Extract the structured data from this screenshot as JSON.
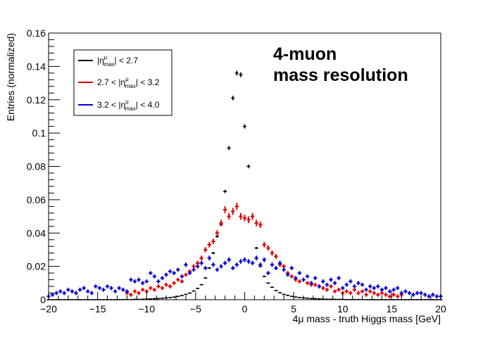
{
  "chart_data": {
    "type": "scatter",
    "xlabel": "4μ mass - truth Higgs mass [GeV]",
    "ylabel": "Entries (normalized)",
    "xlim": [
      -20,
      20
    ],
    "ylim": [
      0,
      0.16
    ],
    "x_ticks": [
      "−20",
      "−15",
      "−10",
      "−5",
      "0",
      "5",
      "10",
      "15",
      "20"
    ],
    "y_ticks": [
      "0",
      "0.02",
      "0.04",
      "0.06",
      "0.08",
      "0.1",
      "0.12",
      "0.14",
      "0.16"
    ],
    "grid": false,
    "legend_position": "top-left",
    "annotation": [
      "4-muon",
      "mass resolution"
    ],
    "series": [
      {
        "name": "|ημmax| < 2.7",
        "legend": {
          "pre": "|η",
          "sup": "μ",
          "sub": "max",
          "post": "| < 2.7"
        },
        "color": "#000000",
        "style": "black-points",
        "x": [
          -20.0,
          -19.6,
          -19.2,
          -18.8,
          -18.4,
          -18.0,
          -17.6,
          -17.2,
          -16.8,
          -16.4,
          -16.0,
          -15.6,
          -15.2,
          -14.8,
          -14.4,
          -14.0,
          -13.6,
          -13.2,
          -12.8,
          -12.4,
          -12.0,
          -11.6,
          -11.2,
          -10.8,
          -10.4,
          -10.0,
          -9.6,
          -9.2,
          -8.8,
          -8.4,
          -8.0,
          -7.6,
          -7.2,
          -6.8,
          -6.4,
          -6.0,
          -5.6,
          -5.2,
          -4.8,
          -4.4,
          -4.0,
          -3.6,
          -3.2,
          -2.8,
          -2.4,
          -2.0,
          -1.6,
          -1.2,
          -0.8,
          -0.4,
          0.0,
          0.4,
          0.8,
          1.2,
          1.6,
          2.0,
          2.4,
          2.8,
          3.2,
          3.6,
          4.0,
          4.4,
          4.8,
          5.2,
          5.6,
          6.0,
          6.4,
          6.8,
          7.2,
          7.6,
          8.0,
          8.4,
          8.8,
          9.2,
          9.6,
          10.0,
          10.4,
          10.8,
          11.2,
          11.6,
          12.0,
          12.4,
          12.8,
          13.2,
          13.6,
          14.0,
          14.4,
          14.8,
          15.2,
          15.6,
          16.0,
          16.4,
          16.8,
          17.2,
          17.6,
          18.0,
          18.4,
          18.8,
          19.2,
          19.6,
          20.0
        ],
        "y": [
          0.0,
          0.0,
          0.0,
          0.0,
          0.0,
          0.0,
          0.0,
          0.0,
          0.0,
          0.0,
          0.0,
          0.0,
          0.0,
          0.0,
          0.0,
          0.0,
          0.0,
          0.0,
          0.0,
          0.0001,
          0.0001,
          0.0001,
          0.0002,
          0.0002,
          0.0003,
          0.0004,
          0.0005,
          0.0006,
          0.0007,
          0.0009,
          0.0011,
          0.0013,
          0.0016,
          0.002,
          0.0025,
          0.0032,
          0.004,
          0.0052,
          0.0068,
          0.009,
          0.013,
          0.019,
          0.028,
          0.038,
          0.045,
          0.065,
          0.091,
          0.121,
          0.136,
          0.135,
          0.104,
          0.08,
          0.05,
          0.031,
          0.02,
          0.014,
          0.01,
          0.0075,
          0.0055,
          0.0042,
          0.0032,
          0.0026,
          0.002,
          0.0016,
          0.0013,
          0.0011,
          0.0009,
          0.0007,
          0.0006,
          0.0005,
          0.0004,
          0.0003,
          0.0003,
          0.0002,
          0.0002,
          0.0002,
          0.0001,
          0.0001,
          0.0001,
          0.0001,
          0.0001,
          0.0,
          0.0,
          0.0,
          0.0,
          0.0,
          0.0,
          0.0,
          0.0,
          0.0,
          0.0,
          0.0,
          0.0,
          0.0,
          0.0,
          0.0,
          0.0,
          0.0,
          0.0,
          0.0,
          0.0
        ]
      },
      {
        "name": "2.7 < |ημmax| < 3.2",
        "legend": {
          "pre": "2.7 < |η",
          "sup": "μ",
          "sub": "max",
          "post": "| < 3.2"
        },
        "color": "#e00000",
        "style": "crosses",
        "x": [
          -12.0,
          -11.6,
          -11.2,
          -10.8,
          -10.4,
          -10.0,
          -9.6,
          -9.2,
          -8.8,
          -8.4,
          -8.0,
          -7.6,
          -7.2,
          -6.8,
          -6.4,
          -6.0,
          -5.6,
          -5.2,
          -4.8,
          -4.4,
          -4.0,
          -3.6,
          -3.2,
          -2.8,
          -2.4,
          -2.0,
          -1.6,
          -1.2,
          -0.8,
          -0.4,
          0.0,
          0.4,
          0.8,
          1.2,
          1.6,
          2.0,
          2.4,
          2.8,
          3.2,
          3.6,
          4.0,
          4.4,
          4.8,
          5.2,
          5.6,
          6.0,
          6.4,
          6.8,
          7.2,
          7.6,
          8.0,
          8.4,
          8.8,
          9.2,
          9.6,
          10.0,
          10.4,
          10.8,
          11.2,
          11.6,
          12.0,
          12.4,
          12.8,
          13.2,
          13.6,
          14.0,
          14.4,
          14.8,
          15.2,
          15.6,
          16.0
        ],
        "y": [
          0.004,
          0.003,
          0.005,
          0.004,
          0.006,
          0.005,
          0.007,
          0.006,
          0.008,
          0.007,
          0.009,
          0.008,
          0.01,
          0.012,
          0.011,
          0.015,
          0.017,
          0.02,
          0.022,
          0.025,
          0.03,
          0.033,
          0.035,
          0.04,
          0.046,
          0.054,
          0.05,
          0.053,
          0.056,
          0.05,
          0.049,
          0.048,
          0.05,
          0.046,
          0.045,
          0.033,
          0.031,
          0.028,
          0.026,
          0.021,
          0.02,
          0.016,
          0.014,
          0.012,
          0.011,
          0.012,
          0.01,
          0.009,
          0.009,
          0.008,
          0.007,
          0.006,
          0.008,
          0.005,
          0.006,
          0.004,
          0.005,
          0.004,
          0.006,
          0.004,
          0.005,
          0.003,
          0.005,
          0.004,
          0.003,
          0.004,
          0.003,
          0.002,
          0.003,
          0.002,
          0.003
        ]
      },
      {
        "name": "3.2 < |ημmax| < 4.0",
        "legend": {
          "pre": "3.2 < |η",
          "sup": "μ",
          "sub": "max",
          "post": "| < 4.0"
        },
        "color": "#0000d8",
        "style": "crosses",
        "x": [
          -20.0,
          -19.6,
          -19.2,
          -18.8,
          -18.4,
          -18.0,
          -17.6,
          -17.2,
          -16.8,
          -16.4,
          -16.0,
          -15.6,
          -15.2,
          -14.8,
          -14.4,
          -14.0,
          -13.6,
          -13.2,
          -12.8,
          -12.4,
          -12.0,
          -11.6,
          -11.2,
          -10.8,
          -10.4,
          -10.0,
          -9.6,
          -9.2,
          -8.8,
          -8.4,
          -8.0,
          -7.6,
          -7.2,
          -6.8,
          -6.4,
          -6.0,
          -5.6,
          -5.2,
          -4.8,
          -4.4,
          -4.0,
          -3.6,
          -3.2,
          -2.8,
          -2.4,
          -2.0,
          -1.6,
          -1.2,
          -0.8,
          -0.4,
          0.0,
          0.4,
          0.8,
          1.2,
          1.6,
          2.0,
          2.4,
          2.8,
          3.2,
          3.6,
          4.0,
          4.4,
          4.8,
          5.2,
          5.6,
          6.0,
          6.4,
          6.8,
          7.2,
          7.6,
          8.0,
          8.4,
          8.8,
          9.2,
          9.6,
          10.0,
          10.4,
          10.8,
          11.2,
          11.6,
          12.0,
          12.4,
          12.8,
          13.2,
          13.6,
          14.0,
          14.4,
          14.8,
          15.2,
          15.6,
          16.0,
          16.4,
          16.8,
          17.2,
          17.6,
          18.0,
          18.4,
          18.8,
          19.2,
          19.6,
          20.0
        ],
        "y": [
          0.002,
          0.003,
          0.004,
          0.005,
          0.004,
          0.006,
          0.005,
          0.004,
          0.006,
          0.007,
          0.005,
          0.004,
          0.008,
          0.007,
          0.006,
          0.008,
          0.007,
          0.005,
          0.007,
          0.006,
          0.005,
          0.012,
          0.011,
          0.012,
          0.01,
          0.011,
          0.016,
          0.014,
          0.011,
          0.013,
          0.015,
          0.017,
          0.016,
          0.018,
          0.014,
          0.021,
          0.016,
          0.018,
          0.02,
          0.022,
          0.019,
          0.025,
          0.021,
          0.018,
          0.02,
          0.022,
          0.024,
          0.019,
          0.021,
          0.023,
          0.024,
          0.023,
          0.022,
          0.025,
          0.021,
          0.024,
          0.016,
          0.021,
          0.019,
          0.022,
          0.018,
          0.015,
          0.019,
          0.013,
          0.016,
          0.012,
          0.014,
          0.01,
          0.013,
          0.008,
          0.011,
          0.009,
          0.012,
          0.01,
          0.013,
          0.007,
          0.009,
          0.011,
          0.008,
          0.01,
          0.009,
          0.006,
          0.008,
          0.007,
          0.008,
          0.006,
          0.007,
          0.005,
          0.006,
          0.007,
          0.004,
          0.005,
          0.004,
          0.003,
          0.004,
          0.004,
          0.003,
          0.002,
          0.003,
          0.002,
          0.002
        ]
      }
    ]
  }
}
